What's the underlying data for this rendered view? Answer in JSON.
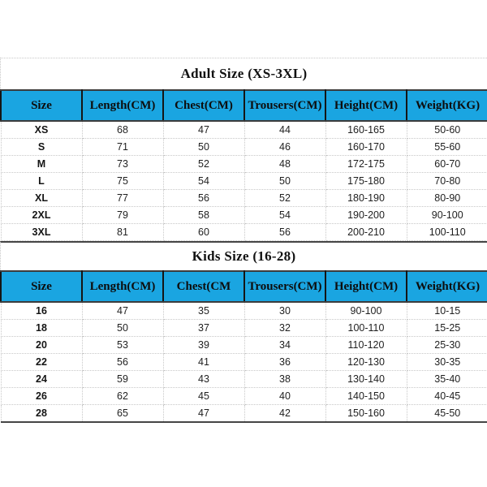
{
  "colors": {
    "header_bg": "#1aa5e1",
    "dark_border": "#454545",
    "dotted_border": "#c8c8c8",
    "text": "#111111"
  },
  "adult_table": {
    "title": "Adult Size (XS-3XL)",
    "columns": [
      "Size",
      "Length(CM)",
      "Chest(CM)",
      "Trousers(CM)",
      "Height(CM)",
      "Weight(KG)"
    ],
    "rows": [
      [
        "XS",
        "68",
        "47",
        "44",
        "160-165",
        "50-60"
      ],
      [
        "S",
        "71",
        "50",
        "46",
        "160-170",
        "55-60"
      ],
      [
        "M",
        "73",
        "52",
        "48",
        "172-175",
        "60-70"
      ],
      [
        "L",
        "75",
        "54",
        "50",
        "175-180",
        "70-80"
      ],
      [
        "XL",
        "77",
        "56",
        "52",
        "180-190",
        "80-90"
      ],
      [
        "2XL",
        "79",
        "58",
        "54",
        "190-200",
        "90-100"
      ],
      [
        "3XL",
        "81",
        "60",
        "56",
        "200-210",
        "100-110"
      ]
    ]
  },
  "kids_table": {
    "title": "Kids Size (16-28)",
    "columns": [
      "Size",
      "Length(CM)",
      "Chest(CM",
      "Trousers(CM)",
      "Height(CM)",
      "Weight(KG)"
    ],
    "rows": [
      [
        "16",
        "47",
        "35",
        "30",
        "90-100",
        "10-15"
      ],
      [
        "18",
        "50",
        "37",
        "32",
        "100-110",
        "15-25"
      ],
      [
        "20",
        "53",
        "39",
        "34",
        "110-120",
        "25-30"
      ],
      [
        "22",
        "56",
        "41",
        "36",
        "120-130",
        "30-35"
      ],
      [
        "24",
        "59",
        "43",
        "38",
        "130-140",
        "35-40"
      ],
      [
        "26",
        "62",
        "45",
        "40",
        "140-150",
        "40-45"
      ],
      [
        "28",
        "65",
        "47",
        "42",
        "150-160",
        "45-50"
      ]
    ]
  }
}
